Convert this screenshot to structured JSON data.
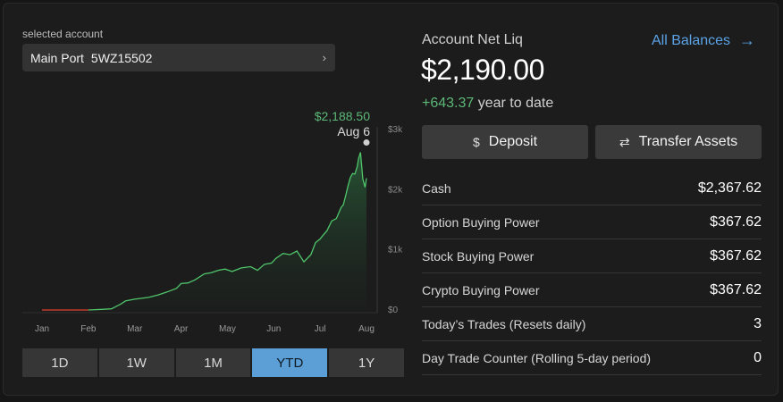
{
  "account": {
    "selected_label": "selected account",
    "name": "Main Port",
    "number": "5WZ15502"
  },
  "summary": {
    "netliq_label": "Account Net Liq",
    "netliq_value": "$2,190.00",
    "ytd_change": "+643.37",
    "ytd_suffix": "year to date",
    "all_balances_label": "All Balances"
  },
  "actions": {
    "deposit_label": "Deposit",
    "transfer_label": "Transfer Assets"
  },
  "balances": [
    {
      "label": "Cash",
      "value": "$2,367.62"
    },
    {
      "label": "Option Buying Power",
      "value": "$367.62"
    },
    {
      "label": "Stock Buying Power",
      "value": "$367.62"
    },
    {
      "label": "Crypto Buying Power",
      "value": "$367.62"
    },
    {
      "label": "Today’s Trades (Resets daily)",
      "value": "3"
    },
    {
      "label": "Day Trade Counter (Rolling 5-day period)",
      "value": "0"
    }
  ],
  "ranges": [
    {
      "label": "1D",
      "active": false
    },
    {
      "label": "1W",
      "active": false
    },
    {
      "label": "1M",
      "active": false
    },
    {
      "label": "YTD",
      "active": true
    },
    {
      "label": "1Y",
      "active": false
    }
  ],
  "colors": {
    "accent": "#5b9fd6",
    "positive": "#5cb877",
    "line": "#4fc46a",
    "link": "#5aa3e6"
  },
  "chart_data": {
    "type": "area",
    "x_ticks": [
      "Jan",
      "Feb",
      "Mar",
      "Apr",
      "May",
      "Jun",
      "Jul",
      "Aug"
    ],
    "y_ticks": [
      "$0",
      "$1k",
      "$2k",
      "$3k"
    ],
    "ylim": [
      0,
      3000
    ],
    "hover": {
      "value": "$2,188.50",
      "date": "Aug 6"
    },
    "series": [
      {
        "x": [
          1.0,
          1.5,
          2.0,
          2.3,
          2.5,
          2.7,
          2.8,
          3.0,
          3.3,
          3.5,
          3.7,
          3.9,
          4.0,
          4.15,
          4.3,
          4.5,
          4.65,
          4.8,
          4.95,
          5.1,
          5.3,
          5.5,
          5.65,
          5.8,
          5.95,
          6.05,
          6.2,
          6.35,
          6.5,
          6.65,
          6.8,
          6.9,
          7.0,
          7.05,
          7.15,
          7.25,
          7.35,
          7.45,
          7.5,
          7.55,
          7.6,
          7.65,
          7.7,
          7.75,
          7.8,
          7.83,
          7.87,
          7.92,
          7.97,
          8.0
        ],
        "y": [
          0,
          0,
          0,
          10,
          20,
          100,
          150,
          180,
          210,
          250,
          300,
          360,
          440,
          450,
          500,
          600,
          620,
          660,
          680,
          640,
          700,
          720,
          660,
          760,
          780,
          860,
          940,
          920,
          980,
          800,
          920,
          1120,
          1180,
          1230,
          1320,
          1480,
          1520,
          1700,
          1750,
          1900,
          2060,
          2200,
          2270,
          2260,
          2380,
          2520,
          2620,
          2180,
          2040,
          2190
        ]
      }
    ]
  }
}
